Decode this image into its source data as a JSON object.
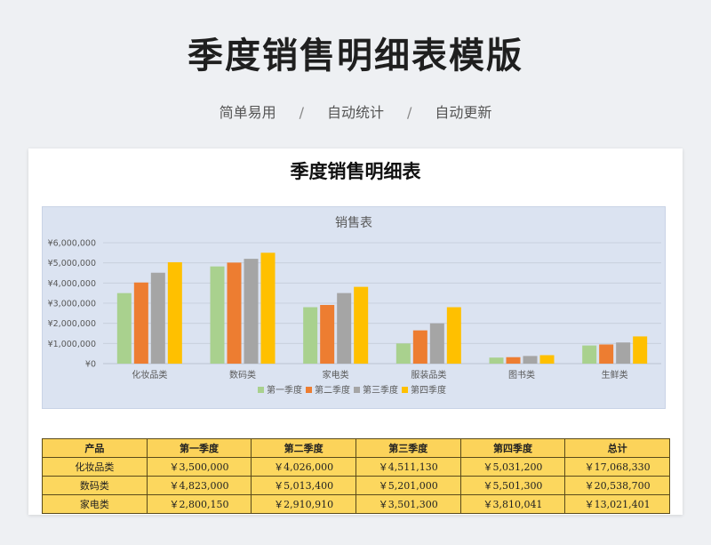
{
  "header": {
    "title": "季度销售明细表模版",
    "tags": [
      "简单易用",
      "自动统计",
      "自动更新"
    ],
    "separator": "/"
  },
  "sheet": {
    "title": "季度销售明细表"
  },
  "colors": {
    "series": [
      "#a9d18e",
      "#ed7d31",
      "#a5a5a5",
      "#ffc000"
    ],
    "gridline": "#c4ccd9",
    "axis_text": "#595959"
  },
  "chart_data": {
    "type": "bar",
    "title": "销售表",
    "categories": [
      "化妆品类",
      "数码类",
      "家电类",
      "服装品类",
      "图书类",
      "生鲜类"
    ],
    "series": [
      {
        "name": "第一季度",
        "values": [
          3500000,
          4823000,
          2800150,
          1000000,
          300000,
          900000
        ]
      },
      {
        "name": "第二季度",
        "values": [
          4026000,
          5013400,
          2910910,
          1650000,
          320000,
          950000
        ]
      },
      {
        "name": "第三季度",
        "values": [
          4511130,
          5201000,
          3501300,
          2000000,
          380000,
          1050000
        ]
      },
      {
        "name": "第四季度",
        "values": [
          5031200,
          5501300,
          3810041,
          2800000,
          420000,
          1350000
        ]
      }
    ],
    "ylim": [
      0,
      6000000
    ],
    "yticks": [
      0,
      1000000,
      2000000,
      3000000,
      4000000,
      5000000,
      6000000
    ],
    "ytick_labels": [
      "¥0",
      "¥1,000,000",
      "¥2,000,000",
      "¥3,000,000",
      "¥4,000,000",
      "¥5,000,000",
      "¥6,000,000"
    ],
    "legend_position": "bottom",
    "grid": true
  },
  "table": {
    "headers": [
      "产品",
      "第一季度",
      "第二季度",
      "第三季度",
      "第四季度",
      "总计"
    ],
    "rows": [
      [
        "化妆品类",
        "￥3,500,000",
        "￥4,026,000",
        "￥4,511,130",
        "￥5,031,200",
        "￥17,068,330"
      ],
      [
        "数码类",
        "￥4,823,000",
        "￥5,013,400",
        "￥5,201,000",
        "￥5,501,300",
        "￥20,538,700"
      ],
      [
        "家电类",
        "￥2,800,150",
        "￥2,910,910",
        "￥3,501,300",
        "￥3,810,041",
        "￥13,021,401"
      ]
    ]
  }
}
